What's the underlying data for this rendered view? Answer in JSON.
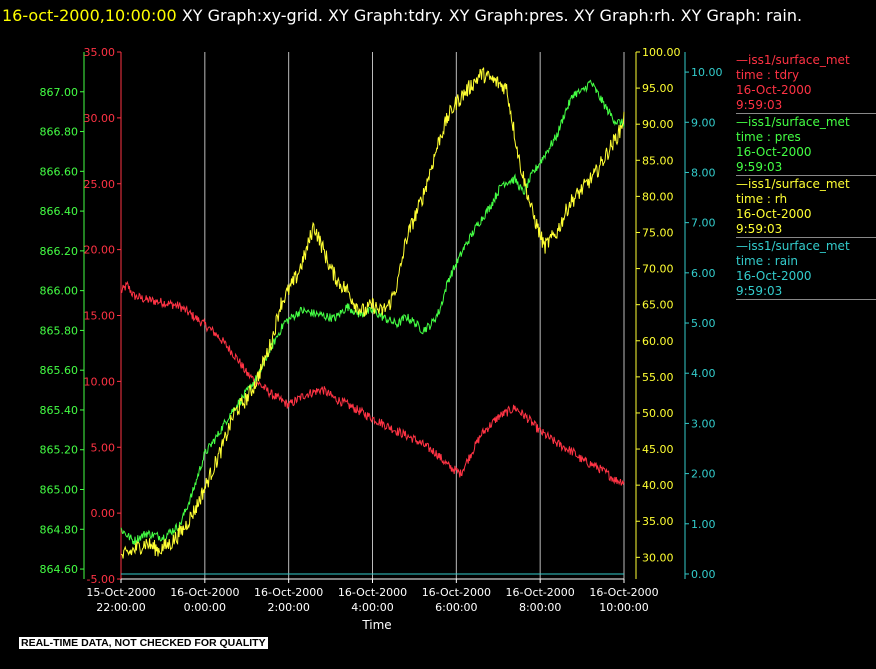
{
  "header": {
    "timestamp": "16-oct-2000,10:00:00",
    "graph_list": " XY Graph:xy-grid.  XY Graph:tdry.  XY Graph:pres.  XY Graph:rh.  XY Graph: rain."
  },
  "footer": {
    "disclaimer": "REAL-TIME DATA, NOT CHECKED FOR QUALITY"
  },
  "chart_data": {
    "type": "line",
    "xlabel": "Time",
    "x_range": [
      "2000-10-15T22:00:00",
      "2000-10-16T10:00:00"
    ],
    "x_ticks": [
      {
        "date": "15-Oct-2000",
        "time": "22:00:00"
      },
      {
        "date": "16-Oct-2000",
        "time": "0:00:00"
      },
      {
        "date": "16-Oct-2000",
        "time": "2:00:00"
      },
      {
        "date": "16-Oct-2000",
        "time": "4:00:00"
      },
      {
        "date": "16-Oct-2000",
        "time": "6:00:00"
      },
      {
        "date": "16-Oct-2000",
        "time": "8:00:00"
      },
      {
        "date": "16-Oct-2000",
        "time": "10:00:00"
      }
    ],
    "grid": "vertical",
    "legend_position": "right",
    "axes": [
      {
        "id": "pres",
        "side": "left-outer",
        "color": "#44ff44",
        "range": [
          864.55,
          867.2
        ],
        "ticks": [
          "864.60",
          "864.80",
          "865.00",
          "865.20",
          "865.40",
          "865.60",
          "865.80",
          "866.00",
          "866.20",
          "866.40",
          "866.60",
          "866.80",
          "867.00"
        ]
      },
      {
        "id": "tdry",
        "side": "left-inner",
        "color": "#ff3344",
        "range": [
          -5.0,
          35.0
        ],
        "ticks": [
          "-5.00",
          "0.00",
          "5.00",
          "10.00",
          "15.00",
          "20.00",
          "25.00",
          "30.00",
          "35.00"
        ]
      },
      {
        "id": "rh",
        "side": "right-inner",
        "color": "#ffff33",
        "range": [
          27.0,
          100.0
        ],
        "ticks": [
          "30.00",
          "35.00",
          "40.00",
          "45.00",
          "50.00",
          "55.00",
          "60.00",
          "65.00",
          "70.00",
          "75.00",
          "80.00",
          "85.00",
          "90.00",
          "95.00",
          "100.00"
        ]
      },
      {
        "id": "rain",
        "side": "right-outer",
        "color": "#33cccc",
        "range": [
          -0.1,
          10.4
        ],
        "ticks": [
          "0.00",
          "1.00",
          "2.00",
          "3.00",
          "4.00",
          "5.00",
          "6.00",
          "7.00",
          "8.00",
          "9.00",
          "10.00"
        ]
      }
    ],
    "series": [
      {
        "name": "iss1/surface_met",
        "variable": "time : tdry",
        "date": "16-Oct-2000",
        "time": "9:59:03",
        "color": "#ff3344",
        "axis": "tdry",
        "noise": 0.35,
        "x_hours": [
          0,
          0.15,
          0.3,
          0.6,
          1,
          1.4,
          1.7,
          2,
          2.3,
          2.6,
          2.8,
          3,
          3.3,
          3.6,
          4,
          4.4,
          4.8,
          5.1,
          5.3,
          5.6,
          6,
          6.3,
          6.6,
          7,
          7.3,
          7.5,
          7.8,
          8.1,
          8.3,
          8.6,
          9,
          9.4,
          9.7,
          10.0,
          10.4,
          10.8,
          11,
          11.3,
          11.6,
          11.8,
          12
        ],
        "values": [
          16.8,
          17.3,
          16.5,
          16.2,
          16.0,
          15.7,
          15.0,
          14.3,
          13.5,
          12.4,
          11.6,
          10.6,
          9.8,
          9.0,
          8.2,
          9.0,
          9.4,
          8.7,
          8.4,
          7.9,
          7.2,
          6.7,
          6.2,
          5.6,
          5.0,
          4.6,
          3.6,
          3.0,
          4.2,
          6.0,
          7.3,
          8.0,
          7.2,
          6.2,
          5.3,
          4.6,
          4.0,
          3.6,
          3.0,
          2.5,
          2.4
        ]
      },
      {
        "name": "iss1/surface_met",
        "variable": "time : pres",
        "date": "16-Oct-2000",
        "time": "9:59:03",
        "color": "#44ff44",
        "axis": "pres",
        "noise": 0.022,
        "x_hours": [
          0,
          0.3,
          0.6,
          1,
          1.4,
          1.7,
          2,
          2.3,
          2.6,
          3,
          3.3,
          3.5,
          3.9,
          4.3,
          4.7,
          5.1,
          5.4,
          5.7,
          6,
          6.3,
          6.6,
          6.8,
          7,
          7.2,
          7.4,
          7.6,
          7.8,
          8.2,
          8.5,
          8.8,
          9.1,
          9.4,
          9.6,
          9.8,
          10.1,
          10.4,
          10.6,
          10.8,
          11,
          11.2,
          11.4,
          11.6,
          11.8,
          12
        ],
        "values": [
          864.8,
          864.74,
          864.78,
          864.76,
          864.82,
          864.98,
          865.18,
          865.27,
          865.38,
          865.49,
          865.58,
          865.68,
          865.84,
          865.9,
          865.88,
          865.86,
          865.92,
          865.88,
          865.9,
          865.86,
          865.83,
          865.87,
          865.84,
          865.8,
          865.83,
          865.9,
          866.05,
          866.22,
          866.33,
          866.42,
          866.54,
          866.56,
          866.49,
          866.58,
          866.68,
          866.78,
          866.9,
          866.99,
          867.0,
          867.05,
          866.98,
          866.91,
          866.85,
          866.84
        ]
      },
      {
        "name": "iss1/surface_met",
        "variable": "time : rh",
        "date": "16-Oct-2000",
        "time": "9:59:03",
        "color": "#ffff33",
        "axis": "rh",
        "noise": 1.1,
        "x_hours": [
          0,
          0.3,
          0.6,
          0.9,
          1.2,
          1.5,
          1.8,
          2.1,
          2.4,
          2.7,
          3,
          3.2,
          3.4,
          3.6,
          3.8,
          4,
          4.2,
          4.4,
          4.6,
          4.8,
          5.0,
          5.2,
          5.4,
          5.6,
          5.8,
          6,
          6.2,
          6.4,
          6.6,
          6.8,
          7,
          7.2,
          7.4,
          7.6,
          7.8,
          8,
          8.3,
          8.6,
          8.9,
          9.2,
          9.5,
          9.8,
          10.1,
          10.4,
          10.7,
          11,
          11.3,
          11.6,
          11.9,
          12
        ],
        "values": [
          30,
          31,
          32,
          31,
          32,
          34,
          37,
          41,
          45,
          50,
          52,
          54,
          57,
          60,
          65,
          67,
          69,
          72,
          76,
          73,
          70,
          68,
          67,
          65,
          64,
          65,
          64,
          65,
          68,
          74,
          77,
          80,
          84,
          88,
          91,
          93,
          95,
          97,
          96,
          95,
          85,
          78,
          73,
          75,
          79,
          81,
          83,
          86,
          89,
          91
        ]
      },
      {
        "name": "iss1/surface_met",
        "variable": "time : rain",
        "date": "16-Oct-2000",
        "time": "9:59:03",
        "color": "#33cccc",
        "axis": "rain",
        "noise": 0,
        "x_hours": [
          0,
          12
        ],
        "values": [
          0,
          0
        ]
      }
    ]
  }
}
